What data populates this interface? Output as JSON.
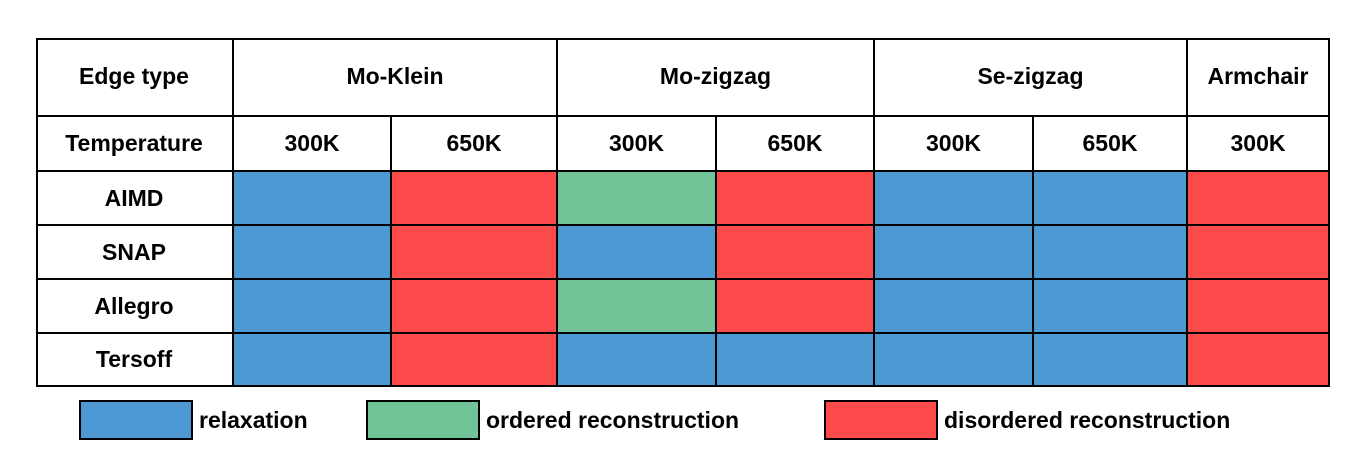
{
  "header": {
    "edge_type_label": "Edge type",
    "temperature_label": "Temperature",
    "edge_groups": [
      {
        "name": "Mo-Klein",
        "temps": [
          "300K",
          "650K"
        ]
      },
      {
        "name": "Mo-zigzag",
        "temps": [
          "300K",
          "650K"
        ]
      },
      {
        "name": "Se-zigzag",
        "temps": [
          "300K",
          "650K"
        ]
      },
      {
        "name": "Armchair",
        "temps": [
          "300K"
        ]
      }
    ]
  },
  "legend": [
    {
      "key": "relaxation",
      "label": "relaxation",
      "color": "#4b98d2"
    },
    {
      "key": "ordered",
      "label": "ordered reconstruction",
      "color": "#71c498"
    },
    {
      "key": "disordered",
      "label": "disordered reconstruction",
      "color": "#fc4a4a"
    }
  ],
  "rows": [
    {
      "method": "AIMD",
      "results": [
        "relaxation",
        "disordered",
        "ordered",
        "disordered",
        "relaxation",
        "relaxation",
        "disordered"
      ]
    },
    {
      "method": "SNAP",
      "results": [
        "relaxation",
        "disordered",
        "relaxation",
        "disordered",
        "relaxation",
        "relaxation",
        "disordered"
      ]
    },
    {
      "method": "Allegro",
      "results": [
        "relaxation",
        "disordered",
        "ordered",
        "disordered",
        "relaxation",
        "relaxation",
        "disordered"
      ]
    },
    {
      "method": "Tersoff",
      "results": [
        "relaxation",
        "disordered",
        "relaxation",
        "relaxation",
        "relaxation",
        "relaxation",
        "disordered"
      ]
    }
  ]
}
